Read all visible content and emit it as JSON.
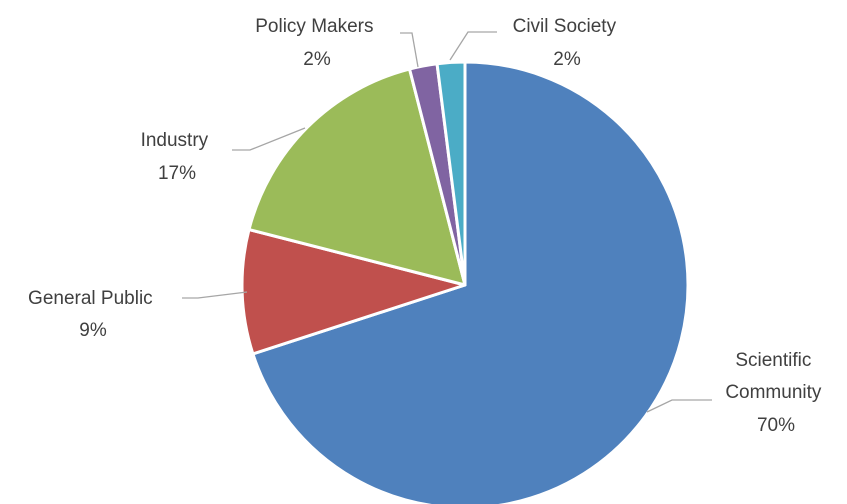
{
  "chart_data": {
    "type": "pie",
    "slices": [
      {
        "label": "Scientific Community",
        "value": 70,
        "display": "70%",
        "color": "#4F81BD"
      },
      {
        "label": "General Public",
        "value": 9,
        "display": "9%",
        "color": "#C0504D"
      },
      {
        "label": "Industry",
        "value": 17,
        "display": "17%",
        "color": "#9BBB59"
      },
      {
        "label": "Policy Makers",
        "value": 2,
        "display": "2%",
        "color": "#8064A2"
      },
      {
        "label": "Civil Society",
        "value": 2,
        "display": "2%",
        "color": "#4BACC6"
      }
    ],
    "legend": "none",
    "data_labels": "category-and-percent-outside-with-leader-lines"
  }
}
